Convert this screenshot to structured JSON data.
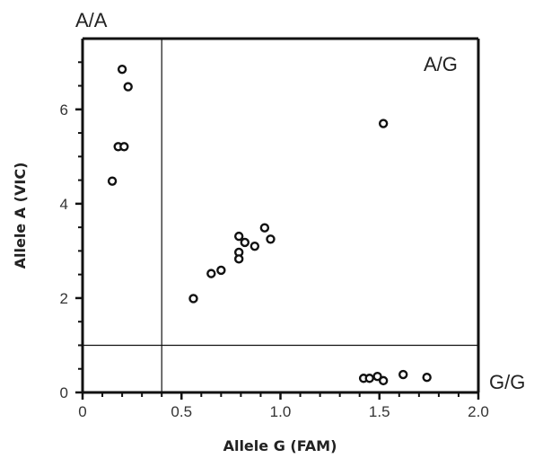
{
  "chart_data": {
    "type": "scatter",
    "title": "",
    "xlabel": "Allele G (FAM)",
    "ylabel": "Allele A (VIC)",
    "xlim": [
      0,
      2.0
    ],
    "ylim": [
      0,
      7.5
    ],
    "x_ticks": [
      0,
      0.5,
      1.0,
      1.5,
      2.0
    ],
    "x_tick_labels": [
      "0",
      "0.5",
      "1.0",
      "1.5",
      "2.0"
    ],
    "y_ticks": [
      0,
      2,
      4,
      6
    ],
    "y_tick_labels": [
      "0",
      "2",
      "4",
      "6"
    ],
    "grid": false,
    "legend": "none",
    "threshold_lines": {
      "x": 0.4,
      "y": 1.0
    },
    "region_labels": {
      "top_left": "A/A",
      "top_right": "A/G",
      "bottom_right": "G/G"
    },
    "marker_color": "#111111",
    "points": [
      {
        "x": 0.2,
        "y": 6.85
      },
      {
        "x": 0.23,
        "y": 6.48
      },
      {
        "x": 0.18,
        "y": 5.21
      },
      {
        "x": 0.21,
        "y": 5.21
      },
      {
        "x": 0.15,
        "y": 4.48
      },
      {
        "x": 1.52,
        "y": 5.7
      },
      {
        "x": 0.56,
        "y": 1.99
      },
      {
        "x": 0.65,
        "y": 2.52
      },
      {
        "x": 0.7,
        "y": 2.59
      },
      {
        "x": 0.79,
        "y": 3.31
      },
      {
        "x": 0.82,
        "y": 3.18
      },
      {
        "x": 0.87,
        "y": 3.1
      },
      {
        "x": 0.92,
        "y": 3.49
      },
      {
        "x": 0.95,
        "y": 3.25
      },
      {
        "x": 0.79,
        "y": 2.97
      },
      {
        "x": 0.79,
        "y": 2.83
      },
      {
        "x": 1.42,
        "y": 0.3
      },
      {
        "x": 1.45,
        "y": 0.3
      },
      {
        "x": 1.49,
        "y": 0.34
      },
      {
        "x": 1.52,
        "y": 0.25
      },
      {
        "x": 1.62,
        "y": 0.38
      },
      {
        "x": 1.74,
        "y": 0.32
      }
    ]
  }
}
